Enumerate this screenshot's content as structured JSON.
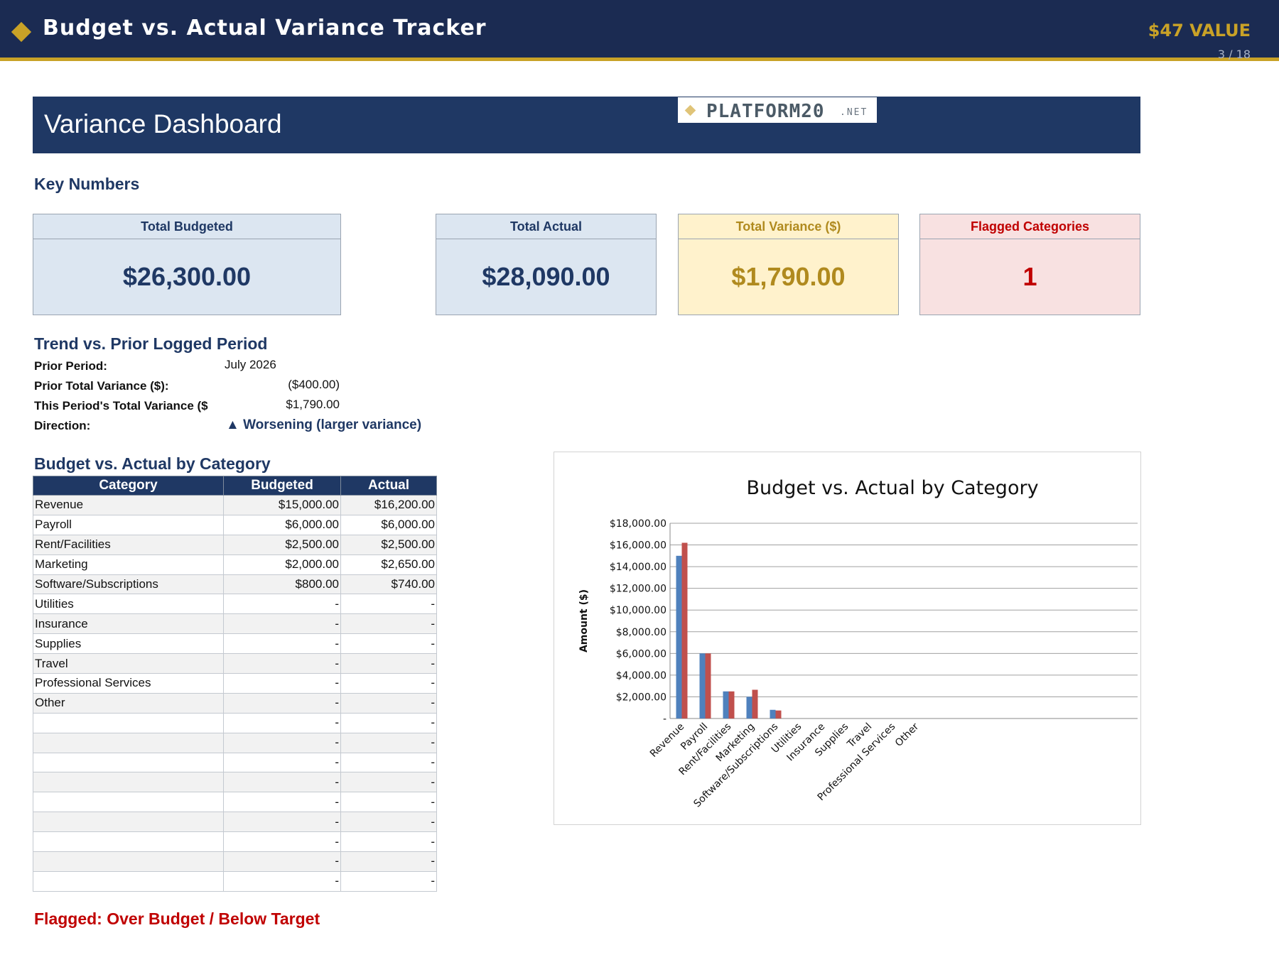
{
  "banner": {
    "title": "Budget vs. Actual Variance Tracker",
    "value_badge": "$47 VALUE",
    "page_indicator": "3 / 18"
  },
  "dashboard": {
    "title": "Variance Dashboard",
    "logo_main": "PLATFORM20",
    "logo_suffix": ".NET"
  },
  "key_numbers": {
    "heading": "Key Numbers",
    "cards": [
      {
        "label": "Total Budgeted",
        "value": "$26,300.00"
      },
      {
        "label": "Total Actual",
        "value": "$28,090.00"
      },
      {
        "label": "Total Variance ($)",
        "value": "$1,790.00"
      },
      {
        "label": "Flagged Categories",
        "value": "1"
      }
    ]
  },
  "trend": {
    "heading": "Trend vs. Prior Logged Period",
    "rows": [
      {
        "label": "Prior Period:",
        "value": "July 2026"
      },
      {
        "label": "Prior Total Variance ($):",
        "value": "($400.00)"
      },
      {
        "label": "This Period's Total Variance ($",
        "value": "$1,790.00"
      },
      {
        "label": "Direction:",
        "value": "▲ Worsening (larger variance)"
      }
    ]
  },
  "category_table": {
    "heading": "Budget vs. Actual by Category",
    "headers": [
      "Category",
      "Budgeted",
      "Actual"
    ],
    "rows": [
      [
        "Revenue",
        "$15,000.00",
        "$16,200.00"
      ],
      [
        "Payroll",
        "$6,000.00",
        "$6,000.00"
      ],
      [
        "Rent/Facilities",
        "$2,500.00",
        "$2,500.00"
      ],
      [
        "Marketing",
        "$2,000.00",
        "$2,650.00"
      ],
      [
        "Software/Subscriptions",
        "$800.00",
        "$740.00"
      ],
      [
        "Utilities",
        "-",
        "-"
      ],
      [
        "Insurance",
        "-",
        "-"
      ],
      [
        "Supplies",
        "-",
        "-"
      ],
      [
        "Travel",
        "-",
        "-"
      ],
      [
        "Professional Services",
        "-",
        "-"
      ],
      [
        "Other",
        "-",
        "-"
      ],
      [
        "",
        "-",
        "-"
      ],
      [
        "",
        "-",
        "-"
      ],
      [
        "",
        "-",
        "-"
      ],
      [
        "",
        "-",
        "-"
      ],
      [
        "",
        "-",
        "-"
      ],
      [
        "",
        "-",
        "-"
      ],
      [
        "",
        "-",
        "-"
      ],
      [
        "",
        "-",
        "-"
      ],
      [
        "",
        "-",
        "-"
      ]
    ]
  },
  "flag_note": "Flagged: Over Budget / Below Target",
  "colors": {
    "navy": "#1f3864",
    "gold": "#c9a227",
    "flag_red": "#c00000",
    "bar_budgeted": "#4f81bd",
    "bar_actual": "#c0504d"
  },
  "chart_data": {
    "type": "bar",
    "title": "Budget vs. Actual by Category",
    "xlabel": "",
    "ylabel": "Amount ($)",
    "categories": [
      "Revenue",
      "Payroll",
      "Rent/Facilities",
      "Marketing",
      "Software/Subscriptions",
      "Utilities",
      "Insurance",
      "Supplies",
      "Travel",
      "Professional Services",
      "Other"
    ],
    "series": [
      {
        "values": [
          15000,
          6000,
          2500,
          2000,
          800,
          0,
          0,
          0,
          0,
          0,
          0
        ]
      },
      {
        "values": [
          16200,
          6000,
          2500,
          2650,
          740,
          0,
          0,
          0,
          0,
          0,
          0
        ]
      }
    ],
    "ylim": [
      0,
      18000
    ],
    "y_ticks": [
      {
        "v": 0,
        "label": "-"
      },
      {
        "v": 2000,
        "label": "$2,000.00"
      },
      {
        "v": 4000,
        "label": "$4,000.00"
      },
      {
        "v": 6000,
        "label": "$6,000.00"
      },
      {
        "v": 8000,
        "label": "$8,000.00"
      },
      {
        "v": 10000,
        "label": "$10,000.00"
      },
      {
        "v": 12000,
        "label": "$12,000.00"
      },
      {
        "v": 14000,
        "label": "$14,000.00"
      },
      {
        "v": 16000,
        "label": "$16,000.00"
      },
      {
        "v": 18000,
        "label": "$18,000.00"
      }
    ],
    "grid": true,
    "legend": "none"
  }
}
